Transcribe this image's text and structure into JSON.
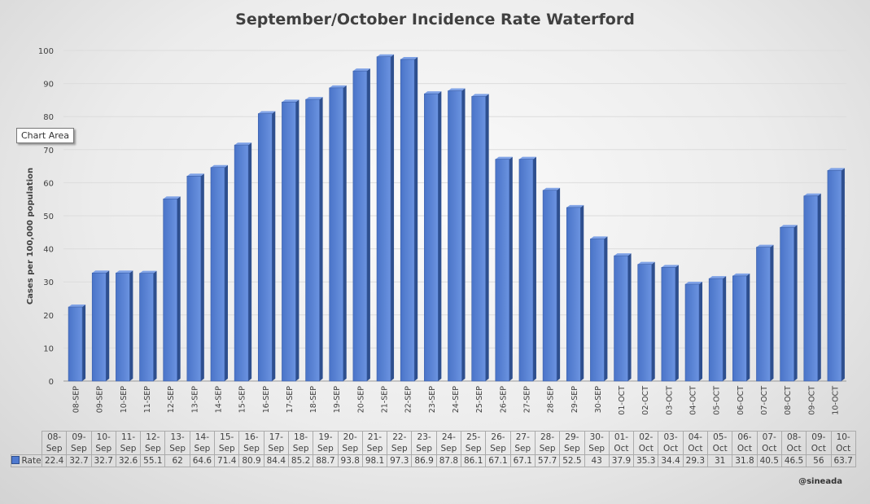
{
  "chart_data": {
    "type": "bar",
    "title": "September/October Incidence Rate Waterford",
    "ylabel": "Cases per 100,000 population",
    "xlabel": "",
    "ylim": [
      0,
      100
    ],
    "yticks": [
      0,
      10,
      20,
      30,
      40,
      50,
      60,
      70,
      80,
      90,
      100
    ],
    "grid": true,
    "categories": [
      "08-SEP",
      "09-SEP",
      "10-SEP",
      "11-SEP",
      "12-SEP",
      "13-SEP",
      "14-SEP",
      "15-SEP",
      "16-SEP",
      "17-SEP",
      "18-SEP",
      "19-SEP",
      "20-SEP",
      "21-SEP",
      "22-SEP",
      "23-SEP",
      "24-SEP",
      "25-SEP",
      "26-SEP",
      "27-SEP",
      "28-SEP",
      "29-SEP",
      "30-SEP",
      "01-OCT",
      "02-OCT",
      "03-OCT",
      "04-OCT",
      "05-OCT",
      "06-OCT",
      "07-OCT",
      "08-OCT",
      "09-OCT",
      "10-OCT"
    ],
    "table_headers": [
      [
        "08-",
        "Sep"
      ],
      [
        "09-",
        "Sep"
      ],
      [
        "10-",
        "Sep"
      ],
      [
        "11-",
        "Sep"
      ],
      [
        "12-",
        "Sep"
      ],
      [
        "13-",
        "Sep"
      ],
      [
        "14-",
        "Sep"
      ],
      [
        "15-",
        "Sep"
      ],
      [
        "16-",
        "Sep"
      ],
      [
        "17-",
        "Sep"
      ],
      [
        "18-",
        "Sep"
      ],
      [
        "19-",
        "Sep"
      ],
      [
        "20-",
        "Sep"
      ],
      [
        "21-",
        "Sep"
      ],
      [
        "22-",
        "Sep"
      ],
      [
        "23-",
        "Sep"
      ],
      [
        "24-",
        "Sep"
      ],
      [
        "25-",
        "Sep"
      ],
      [
        "26-",
        "Sep"
      ],
      [
        "27-",
        "Sep"
      ],
      [
        "28-",
        "Sep"
      ],
      [
        "29-",
        "Sep"
      ],
      [
        "30-",
        "Sep"
      ],
      [
        "01-",
        "Oct"
      ],
      [
        "02-",
        "Oct"
      ],
      [
        "03-",
        "Oct"
      ],
      [
        "04-",
        "Oct"
      ],
      [
        "05-",
        "Oct"
      ],
      [
        "06-",
        "Oct"
      ],
      [
        "07-",
        "Oct"
      ],
      [
        "08-",
        "Oct"
      ],
      [
        "09-",
        "Oct"
      ],
      [
        "10-",
        "Oct"
      ]
    ],
    "series": [
      {
        "name": "Rate",
        "color": "#4f7ad0",
        "values": [
          22.4,
          32.7,
          32.7,
          32.6,
          55.1,
          62,
          64.6,
          71.4,
          80.9,
          84.4,
          85.2,
          88.7,
          93.8,
          98.1,
          97.3,
          86.9,
          87.8,
          86.1,
          67.1,
          67.1,
          57.7,
          52.5,
          43,
          37.9,
          35.3,
          34.4,
          29.3,
          31,
          31.8,
          40.5,
          46.5,
          56,
          63.7
        ]
      }
    ]
  },
  "tooltip": "Chart Area",
  "credit": "@sineada"
}
